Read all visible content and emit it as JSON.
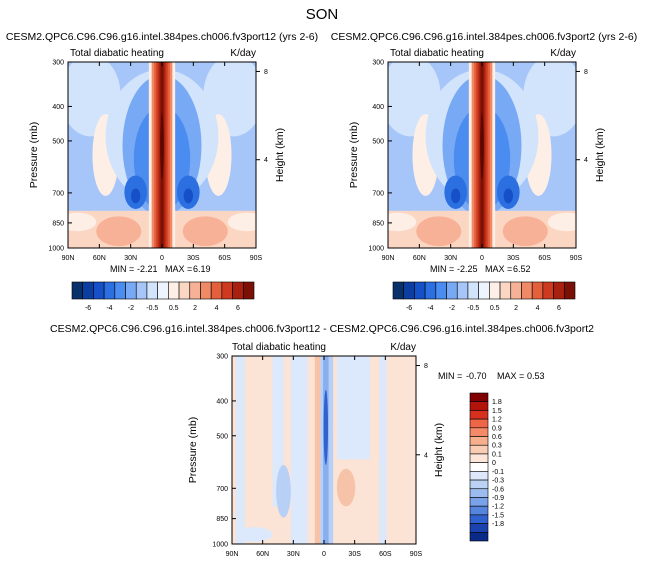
{
  "page_title": "SON",
  "colors": {
    "blues": [
      "#08306b",
      "#0b3ea0",
      "#1550c8",
      "#2b6fe0",
      "#4a8cf0",
      "#78a9f5",
      "#a6c6fa",
      "#d2e3fc",
      "#eef4fe"
    ],
    "reds": [
      "#fdeee6",
      "#fbd6c3",
      "#f7b196",
      "#f08a66",
      "#e4603d",
      "#cd3a1f",
      "#a8200f",
      "#7a1006"
    ],
    "diff_scale": [
      "#7f0000",
      "#b3140a",
      "#d7301f",
      "#ef6548",
      "#f48a68",
      "#f6ae8c",
      "#f9cdb3",
      "#fce6d8",
      "#ffffff",
      "#dde8fa",
      "#bcd2f5",
      "#9cbcef",
      "#7aa2e8",
      "#5685de",
      "#2f62cf",
      "#1b43b0",
      "#0a2a88"
    ]
  },
  "chart_data": [
    {
      "type": "heatmap",
      "title": "CESM2.QPC6.C96.C96.g16.intel.384pes.ch006.fv3port12 (yrs 2-6)",
      "left_string": "Total diabatic heating",
      "right_string": "K/day",
      "xlabel": "",
      "ylabel": "Pressure (mb)",
      "y2label": "Height (km)",
      "x_ticks": [
        "90N",
        "60N",
        "30N",
        "0",
        "30S",
        "60S",
        "90S"
      ],
      "y_ticks": [
        "300",
        "400",
        "500",
        "700",
        "850",
        "1000"
      ],
      "y2_ticks": [
        "8",
        "4"
      ],
      "stats": {
        "min_label": "MIN =",
        "min": "-2.21",
        "max_label": "MAX =",
        "max": "6.19"
      },
      "colorbar_labels": [
        "-6",
        "-4",
        "-2",
        "-0.5",
        "0.5",
        "2",
        "4",
        "6"
      ]
    },
    {
      "type": "heatmap",
      "title": "CESM2.QPC6.C96.C96.g16.intel.384pes.ch006.fv3port2 (yrs 2-6)",
      "left_string": "Total diabatic heating",
      "right_string": "K/day",
      "xlabel": "",
      "ylabel": "Pressure (mb)",
      "y2label": "Height (km)",
      "x_ticks": [
        "90N",
        "60N",
        "30N",
        "0",
        "30S",
        "60S",
        "90S"
      ],
      "y_ticks": [
        "300",
        "400",
        "500",
        "700",
        "850",
        "1000"
      ],
      "y2_ticks": [
        "8",
        "4"
      ],
      "stats": {
        "min_label": "MIN =",
        "min": "-2.25",
        "max_label": "MAX =",
        "max": "6.52"
      },
      "colorbar_labels": [
        "-6",
        "-4",
        "-2",
        "-0.5",
        "0.5",
        "2",
        "4",
        "6"
      ]
    },
    {
      "type": "heatmap",
      "title": "CESM2.QPC6.C96.C96.g16.intel.384pes.ch006.fv3port12 - CESM2.QPC6.C96.C96.g16.intel.384pes.ch006.fv3port2",
      "left_string": "Total diabatic heating",
      "right_string": "K/day",
      "xlabel": "",
      "ylabel": "Pressure (mb)",
      "y2label": "Height (km)",
      "x_ticks": [
        "90N",
        "60N",
        "30N",
        "0",
        "30S",
        "60S",
        "90S"
      ],
      "y_ticks": [
        "300",
        "400",
        "500",
        "700",
        "850",
        "1000"
      ],
      "y2_ticks": [
        "8",
        "4"
      ],
      "stats": {
        "min_label": "MIN =",
        "min": "-0.70",
        "max_label": "MAX =",
        "max": "0.53"
      },
      "colorbar_labels": [
        "1.8",
        "1.5",
        "1.2",
        "0.9",
        "0.6",
        "0.3",
        "0.1",
        "0",
        "-0.1",
        "-0.3",
        "-0.6",
        "-0.9",
        "-1.2",
        "-1.5",
        "-1.8"
      ]
    }
  ]
}
